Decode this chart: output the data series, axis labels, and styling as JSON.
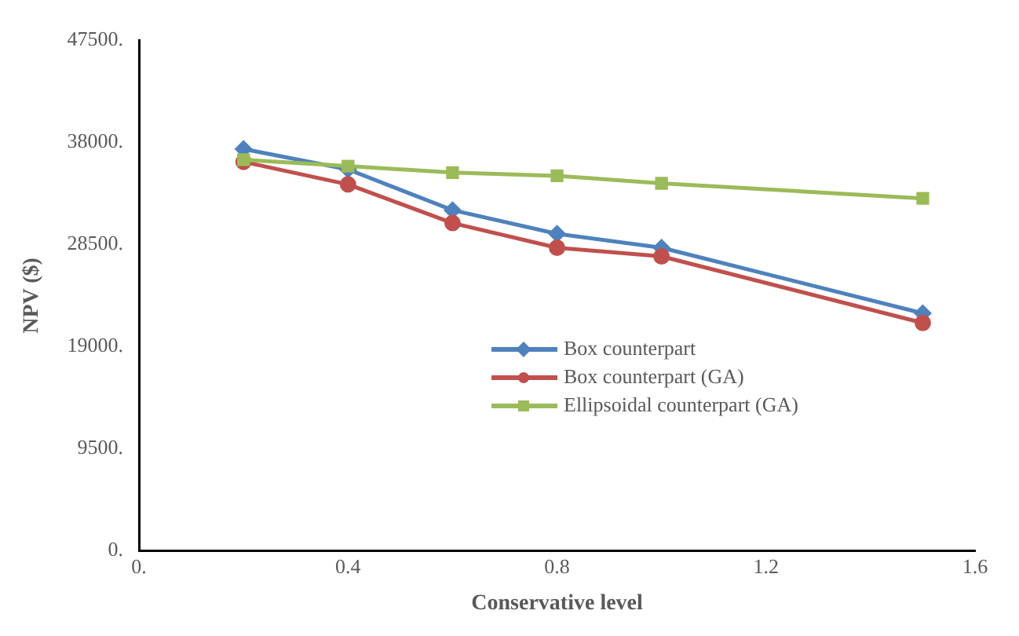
{
  "chart_data": {
    "type": "line",
    "xlabel": "Conservative level",
    "ylabel": "NPV ($)",
    "x": [
      0.2,
      0.4,
      0.6,
      0.8,
      1.0,
      1.5
    ],
    "series": [
      {
        "name": "Box counterpart",
        "color": "#4f81bd",
        "marker": "diamond",
        "values": [
          37400,
          35500,
          31700,
          29500,
          28200,
          22100
        ]
      },
      {
        "name": "Box counterpart (GA)",
        "color": "#c0504d",
        "marker": "circle",
        "values": [
          36200,
          34100,
          30500,
          28200,
          27400,
          21200
        ]
      },
      {
        "name": "Ellipsoidal counterpart (GA)",
        "color": "#9bbb59",
        "marker": "square",
        "values": [
          36400,
          35800,
          35200,
          34900,
          34200,
          32800
        ]
      }
    ],
    "xlim": [
      0,
      1.6
    ],
    "xticks": [
      {
        "value": 0,
        "label": "0."
      },
      0.4,
      0.8,
      1.2,
      1.6
    ],
    "ylim": [
      0,
      47500
    ],
    "yticks": [
      {
        "value": 0,
        "label": "0."
      },
      {
        "value": 9500,
        "label": "9500."
      },
      {
        "value": 19000,
        "label": "19000."
      },
      {
        "value": 28500,
        "label": "28500."
      },
      {
        "value": 38000,
        "label": "38000."
      },
      {
        "value": 47500,
        "label": "47500."
      }
    ],
    "grid": false,
    "legend": "right",
    "line_style": "solid"
  }
}
